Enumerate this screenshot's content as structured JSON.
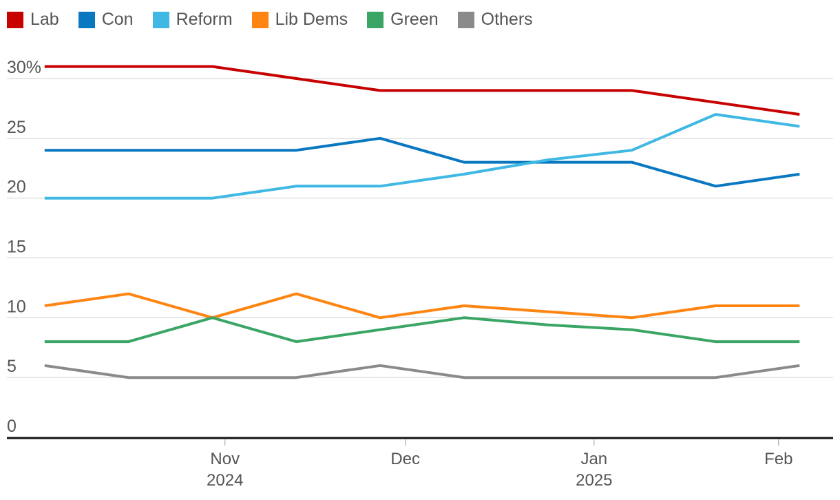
{
  "chart_data": {
    "type": "line",
    "title": "",
    "xlabel": "",
    "ylabel": "",
    "ylim": [
      0,
      30
    ],
    "y_ticks": [
      {
        "value": 30,
        "label": "30%"
      },
      {
        "value": 25,
        "label": "25"
      },
      {
        "value": 20,
        "label": "20"
      },
      {
        "value": 15,
        "label": "15"
      },
      {
        "value": 10,
        "label": "10"
      },
      {
        "value": 5,
        "label": "5"
      },
      {
        "value": 0,
        "label": "0"
      }
    ],
    "x_points": [
      "2024-10-09",
      "2024-10-23",
      "2024-11-06",
      "2024-11-18",
      "2024-12-02",
      "2024-12-16",
      "2025-01-06",
      "2025-01-20",
      "2025-02-03",
      "2025-02-17"
    ],
    "x_ticks": [
      {
        "label": "Nov",
        "sub": "2024",
        "pos": 2.15
      },
      {
        "label": "Dec",
        "sub": "",
        "pos": 4.3
      },
      {
        "label": "Jan",
        "sub": "2025",
        "pos": 6.55
      },
      {
        "label": "Feb",
        "sub": "",
        "pos": 8.75
      }
    ],
    "x_range": [
      -0.45,
      9.4
    ],
    "series": [
      {
        "name": "Lab",
        "color": "#c70000",
        "values": [
          31,
          31,
          31,
          30,
          29,
          29,
          29,
          29,
          28,
          27
        ]
      },
      {
        "name": "Con",
        "color": "#0a77c1",
        "values": [
          24,
          24,
          24,
          24,
          25,
          23,
          23,
          23,
          21,
          22
        ]
      },
      {
        "name": "Reform",
        "color": "#3fb8e4",
        "values": [
          20,
          20,
          20,
          21,
          21,
          22,
          23.2,
          24,
          27,
          26
        ]
      },
      {
        "name": "Lib Dems",
        "color": "#ff8513",
        "values": [
          11,
          12,
          10,
          12,
          10,
          11,
          10.5,
          10,
          11,
          11
        ]
      },
      {
        "name": "Green",
        "color": "#3aa565",
        "values": [
          8,
          8,
          10,
          8,
          9,
          10,
          9.4,
          9,
          8,
          8
        ]
      },
      {
        "name": "Others",
        "color": "#8a8a8a",
        "values": [
          6,
          5,
          5,
          5,
          6,
          5,
          5,
          5,
          5,
          6
        ]
      }
    ]
  }
}
